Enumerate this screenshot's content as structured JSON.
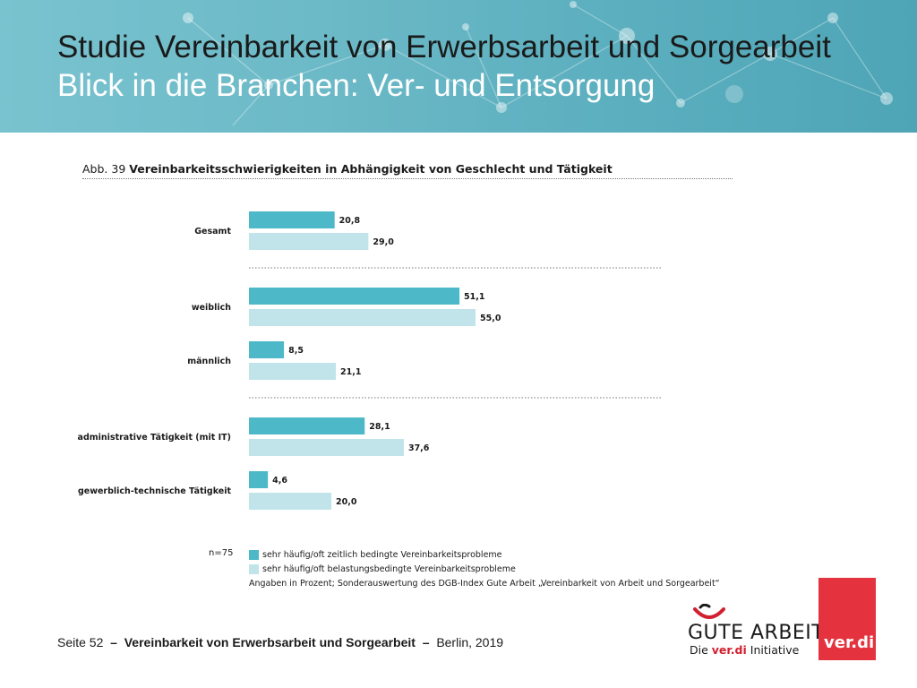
{
  "header": {
    "title_line1": "Studie Vereinbarkeit von Erwerbsarbeit und Sorgearbeit",
    "title_line2": "Blick in die Branchen: Ver- und Entsorgung"
  },
  "figure": {
    "number": "Abb. 39",
    "title": "Vereinbarkeitsschwierigkeiten in Abhängigkeit von Geschlecht und Tätigkeit",
    "sample_size": "n=75",
    "source_note": "Angaben in Prozent; Sonderauswertung des DGB-Index Gute Arbeit „Vereinbarkeit von Arbeit und Sorgearbeit“"
  },
  "chart_data": {
    "type": "bar",
    "orientation": "horizontal",
    "categories": [
      "Gesamt",
      "weiblich",
      "männlich",
      "administrative Tätigkeit (mit IT)",
      "gewerblich-technische Tätigkeit"
    ],
    "series": [
      {
        "name": "sehr häufig/oft zeitlich bedingte Vereinbarkeitsprobleme",
        "values": [
          20.8,
          51.1,
          8.5,
          28.1,
          4.6
        ],
        "labels": [
          "20,8",
          "51,1",
          "8,5",
          "28,1",
          "4,6"
        ],
        "color": "#4db8c7"
      },
      {
        "name": "sehr häufig/oft belastungsbedingte Vereinbarkeitsprobleme",
        "values": [
          29.0,
          55.0,
          21.1,
          37.6,
          20.0
        ],
        "labels": [
          "29,0",
          "55,0",
          "21,1",
          "37,6",
          "20,0"
        ],
        "color": "#c0e4ea"
      }
    ],
    "groups": [
      [
        "Gesamt"
      ],
      [
        "weiblich",
        "männlich"
      ],
      [
        "administrative Tätigkeit (mit IT)",
        "gewerblich-technische Tätigkeit"
      ]
    ],
    "xlim": [
      0,
      100
    ],
    "grid": false,
    "legend_position": "bottom"
  },
  "footer": {
    "page": "Seite 52",
    "separator": "–",
    "study": "Vereinbarkeit von Erwerbsarbeit und Sorgearbeit",
    "place_year": "Berlin, 2019"
  },
  "logos": {
    "gute_arbeit": "GUTE ARBEIT",
    "gute_arbeit_sub_prefix": "Die",
    "gute_arbeit_sub_brand": "ver.di",
    "gute_arbeit_sub_suffix": "Initiative",
    "verdi": "ver.di"
  }
}
